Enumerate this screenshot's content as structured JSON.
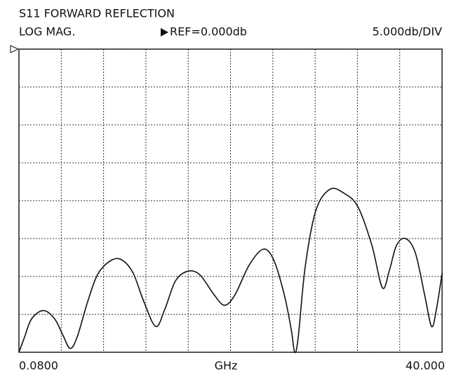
{
  "chart_data": {
    "type": "line",
    "title": "S11 FORWARD REFLECTION",
    "format": "LOG MAG.",
    "reference": "REF=0.000db",
    "scale": "5.000db/DIV",
    "xlabel": "GHz",
    "xlim": [
      0.08,
      40
    ],
    "xticks": [
      {
        "value": 0.08,
        "label": "0.0800"
      },
      {
        "value": 40,
        "label": "40.000"
      }
    ],
    "xgrid": [
      0.08,
      4.072,
      8.064,
      12.056,
      16.048,
      20.04,
      24.032,
      28.024,
      32.016,
      36.008,
      40
    ],
    "ylim": [
      -40,
      0
    ],
    "yticks": [
      -40,
      -35,
      -30,
      -25,
      -20,
      -15,
      -10,
      -5,
      0
    ],
    "grid": true,
    "series": [
      {
        "color": "#111111",
        "x": [
          0.08,
          0.61,
          1.27,
          2.39,
          3.45,
          4.25,
          4.91,
          5.57,
          6.57,
          7.56,
          8.88,
          9.88,
          10.87,
          11.86,
          12.99,
          13.85,
          14.84,
          16.03,
          17.16,
          18.48,
          19.48,
          20.47,
          21.8,
          23.12,
          24.11,
          25.11,
          25.77,
          26.1,
          26.43,
          27.09,
          28.09,
          29.41,
          30.73,
          32.06,
          33.38,
          34.37,
          35.03,
          35.7,
          36.56,
          37.48,
          38.35,
          39.01,
          39.47,
          40
        ],
        "values": [
          -40,
          -38,
          -35.6,
          -34.5,
          -35.6,
          -37.8,
          -39.5,
          -38,
          -33.3,
          -29.6,
          -27.8,
          -27.9,
          -29.6,
          -33.3,
          -36.6,
          -34.3,
          -30.6,
          -29.3,
          -29.8,
          -32.4,
          -33.8,
          -32.4,
          -28.5,
          -26.4,
          -27.8,
          -32.4,
          -37,
          -40,
          -38,
          -28.7,
          -21.3,
          -18.5,
          -19,
          -20.8,
          -25.9,
          -31.5,
          -29.2,
          -25.9,
          -25,
          -26.9,
          -32.4,
          -36.6,
          -34.3,
          -29.6
        ]
      }
    ]
  }
}
